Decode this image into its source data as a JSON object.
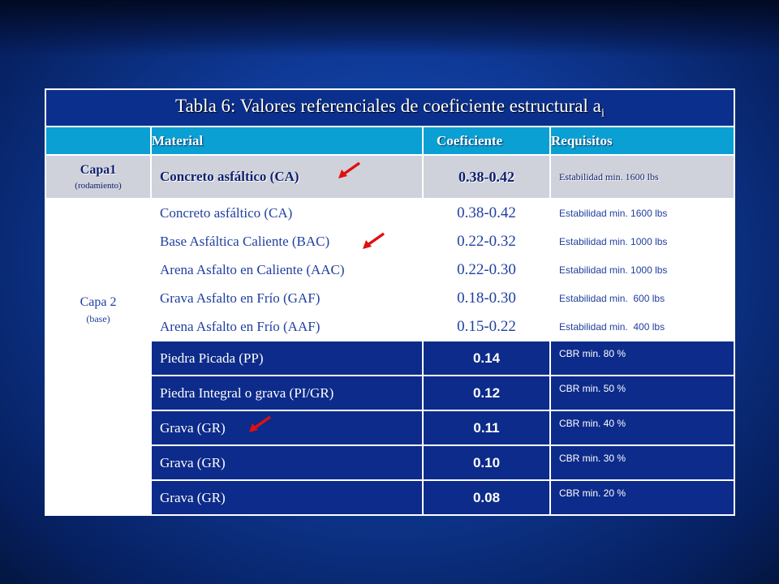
{
  "table": {
    "title": "Tabla 6: Valores referenciales de coeficiente estructural a",
    "title_subscript": "i",
    "headers": {
      "material": "Material",
      "coeficiente": "Coeficiente",
      "requisitos": "Requisitos"
    },
    "capa1": {
      "label": "Capa1",
      "sublabel": "(rodamiento)",
      "material": "Concreto asfáltico (CA)",
      "coeficiente": "0.38-0.42",
      "requisitos": "Estabilidad min. 1600 lbs"
    },
    "capa2": {
      "label": "Capa 2",
      "sublabel": "(base)",
      "rows": [
        {
          "material": "Concreto asfáltico (CA)",
          "coeficiente": "0.38-0.42",
          "requisitos": "Estabilidad min. 1600 lbs"
        },
        {
          "material": "Base Asfáltica Caliente (BAC)",
          "coeficiente": "0.22-0.32",
          "requisitos": "Estabilidad min. 1000 lbs"
        },
        {
          "material": "Arena Asfalto en Caliente (AAC)",
          "coeficiente": "0.22-0.30",
          "requisitos": "Estabilidad min. 1000 lbs"
        },
        {
          "material": "Grava Asfalto en Frío (GAF)",
          "coeficiente": "0.18-0.30",
          "requisitos": "Estabilidad min.  600 lbs"
        },
        {
          "material": "Arena Asfalto en Frío (AAF)",
          "coeficiente": "0.15-0.22",
          "requisitos": "Estabilidad min.  400 lbs"
        },
        {
          "material": "Piedra Picada (PP)",
          "coeficiente": "0.14",
          "requisitos": "CBR min. 80 %"
        },
        {
          "material": "Piedra Integral o grava (PI/GR)",
          "coeficiente": "0.12",
          "requisitos": "CBR min. 50 %"
        },
        {
          "material": "Grava (GR)",
          "coeficiente": "0.11",
          "requisitos": "CBR min. 40 %"
        },
        {
          "material": "Grava (GR)",
          "coeficiente": "0.10",
          "requisitos": "CBR min. 30 %"
        },
        {
          "material": "Grava (GR)",
          "coeficiente": "0.08",
          "requisitos": "CBR min. 20 %"
        }
      ]
    }
  },
  "colors": {
    "arrow": "#e01010",
    "header_cyan": "#0aa0d4",
    "dark_blue": "#0d2b8a"
  }
}
